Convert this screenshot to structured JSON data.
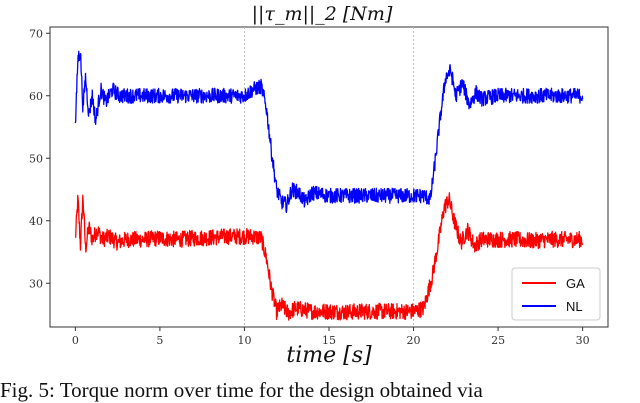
{
  "caption": "Fig. 5: Torque norm over time for the design obtained via",
  "chart_data": {
    "type": "line",
    "title": "||τ_m||_2 [Nm]",
    "xlabel": "time [s]",
    "ylabel": "",
    "xlim": [
      -1.5,
      31.5
    ],
    "ylim": [
      23,
      71
    ],
    "xticks": [
      0,
      5,
      10,
      15,
      20,
      25,
      30
    ],
    "yticks": [
      30,
      40,
      50,
      60,
      70
    ],
    "vlines": [
      10,
      20
    ],
    "grid": "vertical dotted lines at x=10 and x=20",
    "legend_position": "lower-right",
    "series": [
      {
        "name": "GA",
        "color": "#ff0000",
        "x": [
          0,
          0.15,
          0.3,
          0.45,
          0.6,
          0.8,
          1.0,
          1.3,
          1.6,
          2,
          2.5,
          3,
          4,
          5,
          6,
          7,
          8,
          9,
          10,
          10.5,
          11,
          11.3,
          11.6,
          11.9,
          12.2,
          12.6,
          13,
          14,
          15,
          16,
          17,
          18,
          19,
          20,
          20.6,
          21.1,
          21.5,
          21.8,
          22.1,
          22.4,
          22.8,
          23.2,
          23.6,
          24,
          25,
          26,
          27,
          28,
          29,
          30
        ],
        "y": [
          37,
          43.5,
          36,
          44,
          35.5,
          39,
          37,
          38.5,
          37,
          37.5,
          36.5,
          37,
          37,
          37.2,
          37,
          37.2,
          37.3,
          37.5,
          37.5,
          37.5,
          37.2,
          34,
          29,
          25.5,
          26.5,
          25.2,
          26,
          25.5,
          25.5,
          25.4,
          25.5,
          25.5,
          25.5,
          25.5,
          26,
          31,
          37,
          42,
          43.5,
          40,
          36.5,
          38.5,
          36,
          37,
          37,
          37,
          36.8,
          37,
          37,
          37
        ],
        "noise": 1.3
      },
      {
        "name": "NL",
        "color": "#0000ff",
        "x": [
          0,
          0.15,
          0.3,
          0.45,
          0.6,
          0.8,
          1.0,
          1.2,
          1.5,
          1.8,
          2.2,
          2.6,
          3,
          4,
          5,
          6,
          7,
          8,
          9,
          10,
          10.5,
          11,
          11.3,
          11.6,
          11.9,
          12.2,
          12.5,
          12.8,
          13.2,
          13.6,
          14,
          15,
          16,
          17,
          18,
          19,
          20,
          20.6,
          21,
          21.3,
          21.6,
          21.9,
          22.2,
          22.5,
          22.9,
          23.3,
          23.7,
          24,
          25,
          26,
          27,
          28,
          29,
          30
        ],
        "y": [
          55,
          66,
          67,
          58,
          63,
          57,
          60,
          56,
          61,
          59,
          61,
          60,
          60,
          60,
          60,
          60,
          60,
          60,
          60,
          60,
          61,
          61.5,
          58,
          51,
          45,
          43,
          42.5,
          45,
          44.5,
          43,
          44.5,
          44,
          44,
          44,
          44,
          44,
          44,
          44,
          43.5,
          50,
          57,
          63,
          64,
          60,
          62,
          58.5,
          60.5,
          59.5,
          60,
          60,
          60,
          60,
          60,
          60
        ],
        "noise": 1.2
      }
    ]
  }
}
